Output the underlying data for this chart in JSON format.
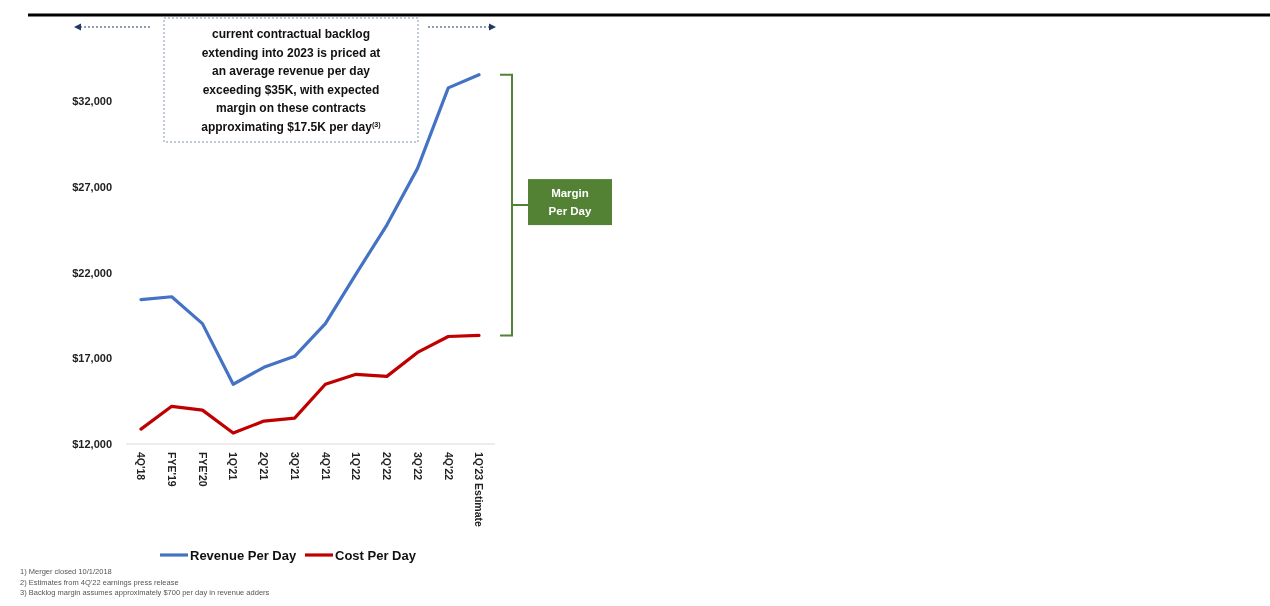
{
  "chart_data": {
    "type": "line",
    "categories": [
      "4Q'18",
      "FYE'19",
      "FYE'20",
      "1Q'21",
      "2Q'21",
      "3Q'21",
      "4Q'21",
      "1Q'22",
      "2Q'22",
      "3Q'22",
      "4Q'22",
      "1Q'23 Estimate"
    ],
    "series": [
      {
        "name": "Revenue Per Day",
        "color": "#4472c4",
        "values": [
          20430,
          20600,
          19030,
          15490,
          16480,
          17120,
          19030,
          21940,
          24790,
          28100,
          32800,
          33570
        ]
      },
      {
        "name": "Cost Per Day",
        "color": "#c00000",
        "values": [
          12870,
          14200,
          13980,
          12640,
          13340,
          13510,
          15490,
          16070,
          15950,
          17350,
          18280,
          18340
        ]
      }
    ],
    "ylim": [
      12000,
      37000
    ],
    "yticks": [
      {
        "value": 12000,
        "label": "$12,000"
      },
      {
        "value": 17000,
        "label": "$17,000"
      },
      {
        "value": 22000,
        "label": "$22,000"
      },
      {
        "value": 27000,
        "label": "$27,000"
      },
      {
        "value": 32000,
        "label": "$32,000"
      }
    ],
    "grid": false,
    "legend": "bottom",
    "marker": "none",
    "line_style": "solid",
    "annotations": [
      "current contractual backlog extending into 2023 is priced at an average revenue per day exceeding $35K, with expected margin on these contracts approximating $17.5K per day$^{(3)}$",
      "Margin Per Day",
      "1) Merger closed 10/1/2018",
      "2) Estimates from 4Q'22 earnings press release",
      "3) Backlog margin assumes approximately $700 per day in revenue adders"
    ]
  }
}
